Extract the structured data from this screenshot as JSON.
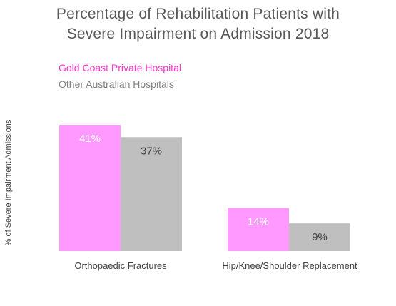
{
  "chart_data": {
    "type": "bar",
    "title_lines": [
      "Percentage of Rehabilitation Patients with",
      "Severe Impairment on Admission 2018"
    ],
    "xlabel": "",
    "ylabel": "% of Severe Impairment Admissions",
    "categories": [
      "Orthopaedic Fractures",
      "Hip/Knee/Shoulder Replacement"
    ],
    "series": [
      {
        "name": "Gold Coast Private Hospital",
        "values": [
          41,
          14
        ],
        "labels": [
          "41%",
          "14%"
        ],
        "color": "#FF99FF",
        "label_color": "#FFFFFF"
      },
      {
        "name": "Other Australian Hospitals",
        "values": [
          37,
          9
        ],
        "labels": [
          "37%",
          "9%"
        ],
        "color": "#BFBFBF",
        "label_color": "#404040"
      }
    ],
    "legend_colors": [
      "#FF33CC",
      "#808080"
    ],
    "ylim": [
      0,
      45
    ],
    "grid": false,
    "legend_position": "top-left"
  }
}
